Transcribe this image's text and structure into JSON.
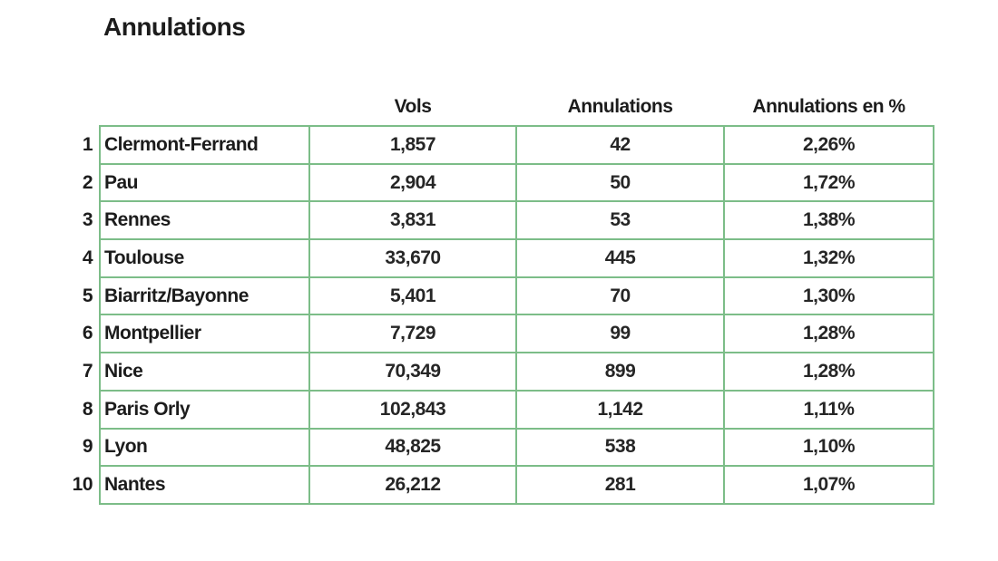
{
  "page": {
    "title": "Annulations"
  },
  "colors": {
    "table_border_green": "#7cbd88",
    "text": "#1c1c1c",
    "background": "#ffffff"
  },
  "table": {
    "columns": {
      "vols": "Vols",
      "annulations": "Annulations",
      "annulations_pct": "Annulations en %"
    },
    "rows": [
      {
        "rank": "1",
        "city": "Clermont-Ferrand",
        "vols": "1,857",
        "annulations": "42",
        "pct": "2,26%"
      },
      {
        "rank": "2",
        "city": "Pau",
        "vols": "2,904",
        "annulations": "50",
        "pct": "1,72%"
      },
      {
        "rank": "3",
        "city": "Rennes",
        "vols": "3,831",
        "annulations": "53",
        "pct": "1,38%"
      },
      {
        "rank": "4",
        "city": "Toulouse",
        "vols": "33,670",
        "annulations": "445",
        "pct": "1,32%"
      },
      {
        "rank": "5",
        "city": "Biarritz/Bayonne",
        "vols": "5,401",
        "annulations": "70",
        "pct": "1,30%"
      },
      {
        "rank": "6",
        "city": "Montpellier",
        "vols": "7,729",
        "annulations": "99",
        "pct": "1,28%"
      },
      {
        "rank": "7",
        "city": "Nice",
        "vols": "70,349",
        "annulations": "899",
        "pct": "1,28%"
      },
      {
        "rank": "8",
        "city": "Paris Orly",
        "vols": "102,843",
        "annulations": "1,142",
        "pct": "1,11%"
      },
      {
        "rank": "9",
        "city": "Lyon",
        "vols": "48,825",
        "annulations": "538",
        "pct": "1,10%"
      },
      {
        "rank": "10",
        "city": "Nantes",
        "vols": "26,212",
        "annulations": "281",
        "pct": "1,07%"
      }
    ]
  }
}
